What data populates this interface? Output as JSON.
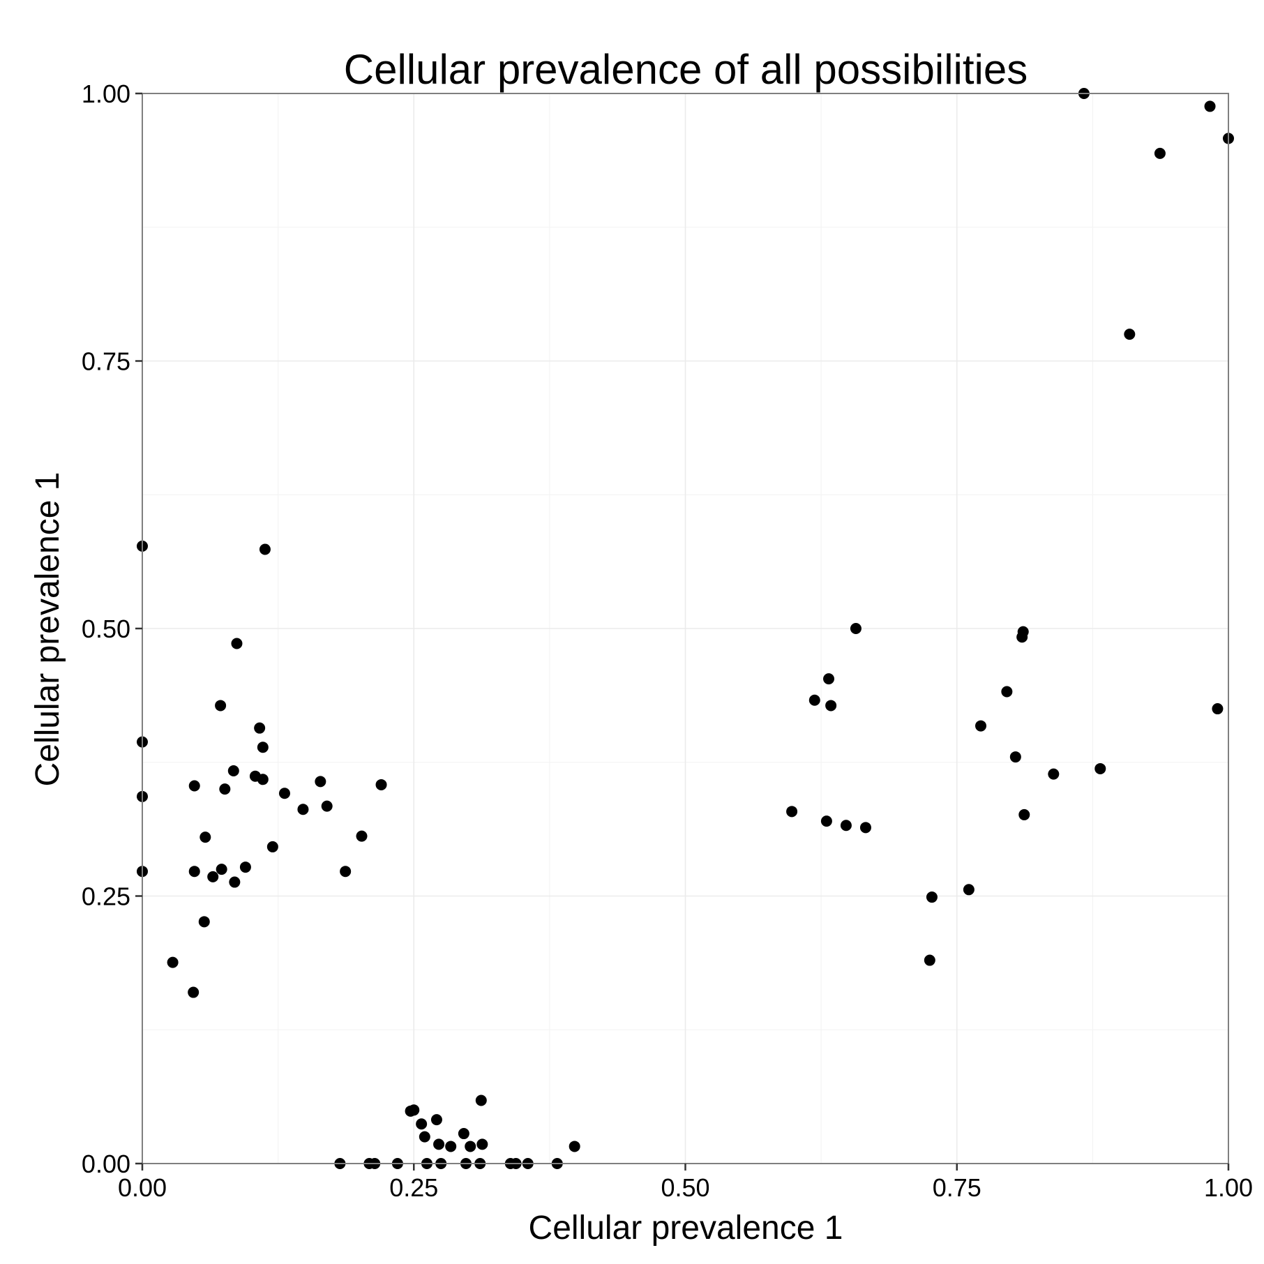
{
  "chart_data": {
    "type": "scatter",
    "title": "Cellular prevalence of all possibilities",
    "xlabel": "Cellular prevalence 1",
    "ylabel": "Cellular prevalence 1",
    "xlim": [
      0,
      1
    ],
    "ylim": [
      0,
      1
    ],
    "x_ticks": [
      "0.00",
      "0.25",
      "0.50",
      "0.75",
      "1.00"
    ],
    "y_ticks": [
      "0.00",
      "0.25",
      "0.50",
      "0.75",
      "1.00"
    ],
    "grid": true,
    "legend": "none",
    "point_color": "#000000",
    "series": [
      {
        "x": [
          0.0,
          0.0,
          0.0,
          0.0,
          0.113,
          0.087,
          0.072,
          0.108,
          0.111,
          0.084,
          0.104,
          0.111,
          0.048,
          0.076,
          0.164,
          0.131,
          0.17,
          0.148,
          0.058,
          0.12,
          0.202,
          0.22,
          0.048,
          0.073,
          0.065,
          0.095,
          0.085,
          0.187,
          0.057,
          0.028,
          0.047,
          0.25,
          0.247,
          0.257,
          0.271,
          0.26,
          0.296,
          0.312,
          0.273,
          0.284,
          0.302,
          0.313,
          0.398,
          0.182,
          0.209,
          0.214,
          0.235,
          0.262,
          0.275,
          0.298,
          0.311,
          0.339,
          0.344,
          0.355,
          0.382,
          0.598,
          0.619,
          0.632,
          0.634,
          0.657,
          0.63,
          0.648,
          0.666,
          0.727,
          0.725,
          0.761,
          0.867,
          0.983,
          0.937,
          1.0,
          0.909,
          0.811,
          0.81,
          0.796,
          0.772,
          0.804,
          0.839,
          0.882,
          0.812,
          0.99
        ],
        "y": [
          0.577,
          0.394,
          0.343,
          0.273,
          0.574,
          0.486,
          0.428,
          0.407,
          0.389,
          0.367,
          0.362,
          0.359,
          0.353,
          0.35,
          0.357,
          0.346,
          0.334,
          0.331,
          0.305,
          0.296,
          0.306,
          0.354,
          0.273,
          0.275,
          0.268,
          0.277,
          0.263,
          0.273,
          0.226,
          0.188,
          0.16,
          0.05,
          0.049,
          0.037,
          0.041,
          0.025,
          0.028,
          0.059,
          0.018,
          0.016,
          0.016,
          0.018,
          0.016,
          0.0,
          0.0,
          0.0,
          0.0,
          0.0,
          0.0,
          0.0,
          0.0,
          0.0,
          0.0,
          0.0,
          0.0,
          0.329,
          0.433,
          0.453,
          0.428,
          0.5,
          0.32,
          0.316,
          0.314,
          0.249,
          0.19,
          0.256,
          1.0,
          0.988,
          0.944,
          0.958,
          0.775,
          0.497,
          0.492,
          0.441,
          0.409,
          0.38,
          0.364,
          0.369,
          0.326,
          0.425
        ]
      }
    ]
  }
}
